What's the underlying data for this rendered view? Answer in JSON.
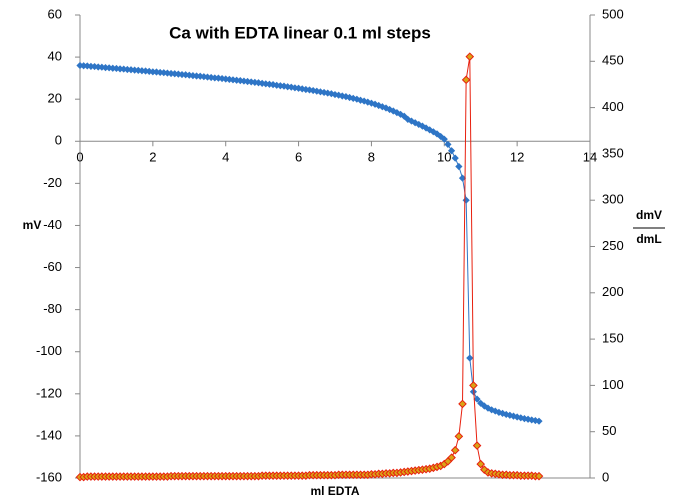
{
  "chart_data": {
    "type": "scatter",
    "title": "Ca with EDTA linear 0.1 ml steps",
    "x_label": "ml EDTA",
    "y_label": "mV",
    "y2_label_top": "dmV",
    "y2_label_bottom": "dmL",
    "xlim": [
      0,
      14
    ],
    "xticks": [
      0,
      2,
      4,
      6,
      8,
      10,
      12,
      14
    ],
    "ylim": [
      -160,
      60
    ],
    "yticks": [
      -160,
      -140,
      -120,
      -100,
      -80,
      -60,
      -40,
      -20,
      0,
      20,
      40,
      60
    ],
    "y2lim": [
      0,
      500
    ],
    "y2ticks": [
      0,
      50,
      100,
      150,
      200,
      250,
      300,
      350,
      400,
      450,
      500
    ],
    "grid": false,
    "x": [
      0,
      0.1,
      0.2,
      0.3,
      0.4,
      0.5,
      0.6,
      0.7,
      0.8,
      0.9,
      1,
      1.1,
      1.2,
      1.3,
      1.4,
      1.5,
      1.6,
      1.7,
      1.8,
      1.9,
      2,
      2.1,
      2.2,
      2.3,
      2.4,
      2.5,
      2.6,
      2.7,
      2.8,
      2.9,
      3,
      3.1,
      3.2,
      3.3,
      3.4,
      3.5,
      3.6,
      3.7,
      3.8,
      3.9,
      4,
      4.1,
      4.2,
      4.3,
      4.4,
      4.5,
      4.6,
      4.7,
      4.8,
      4.9,
      5,
      5.1,
      5.2,
      5.3,
      5.4,
      5.5,
      5.6,
      5.7,
      5.8,
      5.9,
      6,
      6.1,
      6.2,
      6.3,
      6.4,
      6.5,
      6.6,
      6.7,
      6.8,
      6.9,
      7,
      7.1,
      7.2,
      7.3,
      7.4,
      7.5,
      7.6,
      7.7,
      7.8,
      7.9,
      8,
      8.1,
      8.2,
      8.3,
      8.4,
      8.5,
      8.6,
      8.7,
      8.8,
      8.9,
      9,
      9.1,
      9.2,
      9.3,
      9.4,
      9.5,
      9.6,
      9.7,
      9.8,
      9.9,
      10,
      10.1,
      10.2,
      10.3,
      10.4,
      10.5,
      10.6,
      10.7,
      10.8,
      10.9,
      11,
      11.1,
      11.2,
      11.3,
      11.4,
      11.5,
      11.6,
      11.7,
      11.8,
      11.9,
      12,
      12.1,
      12.2,
      12.3,
      12.4,
      12.5,
      12.6
    ],
    "series": [
      {
        "color": "#2e75c6",
        "axis": "y",
        "values": [
          36,
          35.9,
          35.8,
          35.6,
          35.5,
          35.3,
          35.2,
          35,
          34.9,
          34.7,
          34.6,
          34.4,
          34.3,
          34.1,
          34,
          33.8,
          33.7,
          33.5,
          33.4,
          33.2,
          33,
          32.9,
          32.7,
          32.6,
          32.4,
          32.2,
          32.1,
          31.9,
          31.7,
          31.6,
          31.4,
          31.2,
          31,
          30.9,
          30.7,
          30.5,
          30.3,
          30.1,
          30,
          29.8,
          29.6,
          29.4,
          29.2,
          29,
          28.8,
          28.6,
          28.4,
          28.2,
          28,
          27.8,
          27.5,
          27.3,
          27.1,
          26.9,
          26.6,
          26.4,
          26.2,
          25.9,
          25.7,
          25.4,
          25.2,
          24.9,
          24.6,
          24.4,
          24.1,
          23.8,
          23.5,
          23.2,
          22.9,
          22.6,
          22.2,
          21.9,
          21.5,
          21.2,
          20.8,
          20.4,
          20,
          19.5,
          19.1,
          18.6,
          18.1,
          17.6,
          17,
          16.4,
          15.8,
          15.1,
          14.4,
          13.6,
          12.8,
          11.9,
          10.4,
          9.6,
          8.8,
          8,
          7.2,
          6.3,
          5.4,
          4.5,
          3.5,
          2.3,
          1,
          -1.5,
          -4.5,
          -8,
          -12,
          -17.5,
          -28,
          -103,
          -119,
          -122.5,
          -124.5,
          -125.8,
          -126.8,
          -127.6,
          -128.2,
          -128.8,
          -129.3,
          -129.8,
          -130.2,
          -130.6,
          -131,
          -131.4,
          -131.8,
          -132.1,
          -132.4,
          -132.7,
          -133
        ]
      },
      {
        "color": "#e8200e",
        "marker_fill": "#d9a416",
        "axis": "y2",
        "values": [
          1,
          1,
          1.5,
          1.5,
          1.5,
          1.5,
          1.5,
          1.5,
          1.5,
          1.5,
          1.5,
          1.5,
          1.5,
          1.5,
          1.5,
          1.5,
          1.5,
          1.5,
          1.5,
          1.5,
          1.5,
          1.5,
          1.5,
          1.5,
          1.5,
          2,
          2,
          2,
          2,
          2,
          2,
          2,
          2,
          2,
          2,
          2,
          2,
          2,
          2,
          2,
          2,
          2,
          2,
          2,
          2,
          2,
          2,
          2,
          2,
          2,
          2.5,
          2.5,
          2.5,
          2.5,
          2.5,
          2.5,
          2.5,
          2.5,
          2.5,
          2.5,
          2.5,
          2.5,
          2.5,
          3,
          3,
          3,
          3,
          3,
          3,
          3,
          3,
          3.5,
          3.5,
          3.5,
          3.5,
          3.5,
          3.5,
          3.5,
          3.5,
          3.5,
          4,
          4,
          4.5,
          4.5,
          5,
          5,
          5.5,
          5.5,
          6,
          6.5,
          7,
          7.5,
          8,
          8.5,
          9,
          9.5,
          10,
          11,
          12,
          13,
          15,
          18,
          22,
          30,
          45,
          80,
          430,
          455,
          100,
          35,
          15,
          9,
          6,
          5,
          4.5,
          4,
          3.5,
          3.5,
          3,
          3,
          3,
          2.5,
          2.5,
          2.5,
          2.5,
          2,
          2
        ]
      }
    ]
  }
}
